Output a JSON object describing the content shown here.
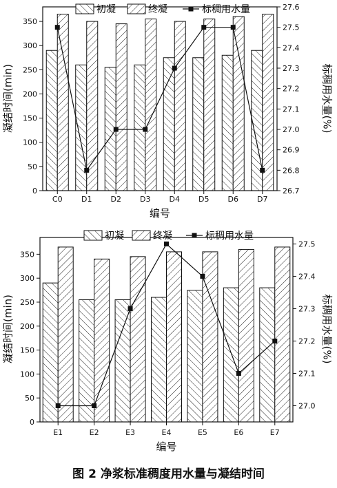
{
  "caption": "图 2   净浆标准稠度用水量与凝结时间",
  "chart_data": [
    {
      "type": "bar",
      "categories": [
        "C0",
        "D1",
        "D2",
        "D3",
        "D4",
        "D5",
        "D6",
        "D7"
      ],
      "series": [
        {
          "name": "初凝",
          "kind": "bar",
          "values": [
            290,
            260,
            255,
            260,
            275,
            275,
            280,
            290
          ]
        },
        {
          "name": "终凝",
          "kind": "bar",
          "values": [
            365,
            350,
            345,
            355,
            350,
            355,
            360,
            365
          ]
        },
        {
          "name": "标稠用水量",
          "kind": "line",
          "axis": "right",
          "values": [
            27.5,
            26.8,
            27.0,
            27.0,
            27.3,
            27.5,
            27.5,
            26.8
          ]
        }
      ],
      "xlabel": "编号",
      "ylabel": "凝结时间(min)",
      "y2label": "标稠用水量(%)",
      "ylim": [
        0,
        380
      ],
      "yticks": [
        0,
        50,
        100,
        150,
        200,
        250,
        300,
        350
      ],
      "y2lim": [
        26.7,
        27.6
      ],
      "y2ticks": [
        26.7,
        26.8,
        26.9,
        27.0,
        27.1,
        27.2,
        27.3,
        27.4,
        27.5,
        27.6
      ],
      "y2decimals": 1,
      "legend_position": "top",
      "grid": false
    },
    {
      "type": "bar",
      "categories": [
        "E1",
        "E2",
        "E3",
        "E4",
        "E5",
        "E6",
        "E7"
      ],
      "series": [
        {
          "name": "初凝",
          "kind": "bar",
          "values": [
            290,
            255,
            255,
            260,
            275,
            280,
            280
          ]
        },
        {
          "name": "终凝",
          "kind": "bar",
          "values": [
            365,
            340,
            345,
            355,
            355,
            360,
            365
          ]
        },
        {
          "name": "标稠用水量",
          "kind": "line",
          "axis": "right",
          "values": [
            27.0,
            27.0,
            27.3,
            27.5,
            27.4,
            27.1,
            27.2
          ]
        }
      ],
      "xlabel": "编号",
      "ylabel": "凝结时间(min)",
      "y2label": "标稠用水量(%)",
      "ylim": [
        0,
        385
      ],
      "yticks": [
        0,
        50,
        100,
        150,
        200,
        250,
        300,
        350
      ],
      "y2lim": [
        26.95,
        27.52
      ],
      "y2ticks": [
        27.0,
        27.1,
        27.2,
        27.3,
        27.4,
        27.5
      ],
      "y2decimals": 1,
      "legend_position": "top",
      "grid": false
    }
  ]
}
